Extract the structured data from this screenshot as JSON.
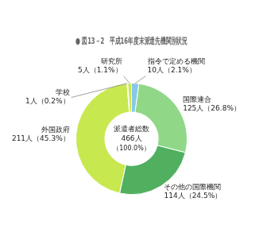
{
  "chart_data": {
    "type": "doughnut",
    "title": "● 図13－2　平成16年度末派遣先機関別状況",
    "categories": [
      "指令で定める機関",
      "国際連合",
      "その他の国際機関",
      "外国政府",
      "学校",
      "研究所"
    ],
    "values": [
      10,
      125,
      114,
      211,
      1,
      5
    ],
    "value_labels": [
      "10人（2.1%）",
      "125人（26.8%）",
      "114人（24.5%）",
      "211人（45.3%）",
      "1人（0.2%）",
      "5人（1.1%）"
    ],
    "colors": [
      "#88c8e8",
      "#90d888",
      "#50b060",
      "#c8e850",
      "#c8e850",
      "#c8e850"
    ],
    "annotations": [
      "派遣者総数",
      "466人",
      "（100.0%）"
    ],
    "data_labels": true
  }
}
